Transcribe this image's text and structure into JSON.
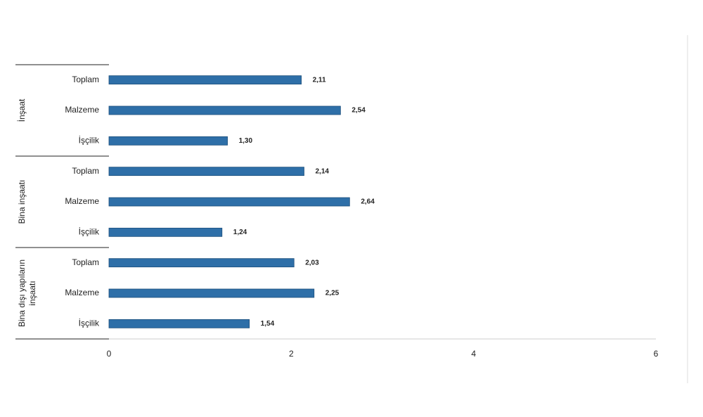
{
  "chart_data": {
    "type": "bar",
    "orientation": "horizontal",
    "groups": [
      [
        "İnşaat"
      ],
      [
        "Bina inşaatı"
      ],
      [
        "Bina dışı yapıların",
        "inşaatı"
      ]
    ],
    "categories": [
      "Toplam",
      "Malzeme",
      "İşçilik",
      "Toplam",
      "Malzeme",
      "İşçilik",
      "Toplam",
      "Malzeme",
      "İşçilik"
    ],
    "values": [
      2.11,
      2.54,
      1.3,
      2.14,
      2.64,
      1.24,
      2.03,
      2.25,
      1.54
    ],
    "value_labels": [
      "2,11",
      "2,54",
      "1,30",
      "2,14",
      "2,64",
      "1,24",
      "2,03",
      "2,25",
      "1,54"
    ],
    "color": "#2e6fa8",
    "xlim": [
      0,
      6
    ],
    "xticks": [
      0,
      2,
      4,
      6
    ]
  }
}
